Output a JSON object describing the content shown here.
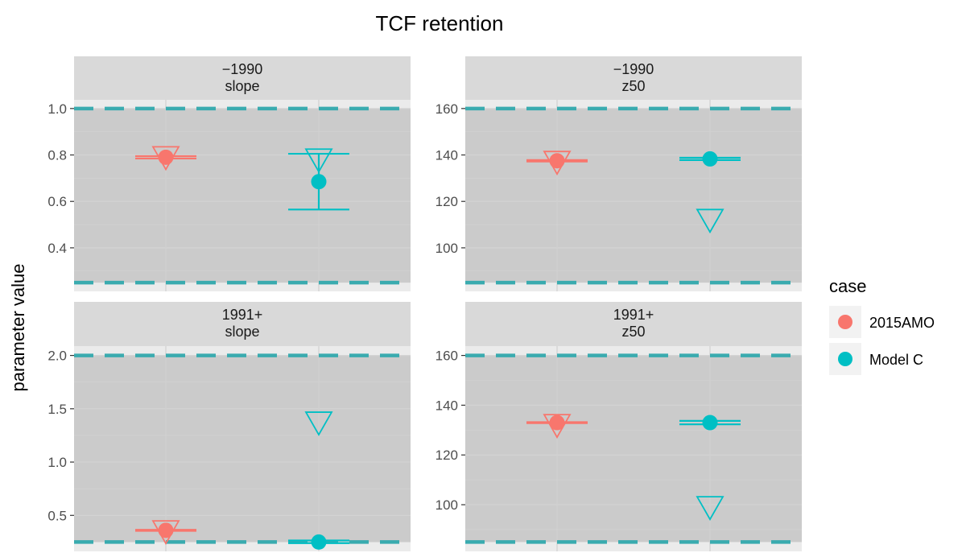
{
  "title": "TCF retention",
  "ylabel": "parameter value",
  "legend": {
    "title": "case",
    "entries": [
      {
        "label": "2015AMO",
        "color": "#F8766D"
      },
      {
        "label": "Model C",
        "color": "#00BFC4"
      }
    ]
  },
  "chart_data": {
    "type": "scatter",
    "title": "TCF retention",
    "ylabel": "parameter value",
    "legend_position": "right",
    "categories": [
      "2015AMO",
      "Model C"
    ],
    "panels": [
      {
        "strip": [
          "−1990",
          "slope"
        ],
        "ylim": [
          0.25,
          1.0
        ],
        "yticks": [
          0.4,
          0.6,
          0.8,
          1.0
        ],
        "ytick_labels": [
          "0.4",
          "0.6",
          "0.8",
          "1.0"
        ],
        "bounds": [
          0.25,
          1.0
        ],
        "points": [
          {
            "case": "2015AMO",
            "estimate": 0.79,
            "lower": 0.785,
            "upper": 0.795,
            "initial": 0.79
          },
          {
            "case": "Model C",
            "estimate": 0.685,
            "lower": 0.565,
            "upper": 0.805,
            "initial": 0.78
          }
        ]
      },
      {
        "strip": [
          "−1990",
          "z50"
        ],
        "ylim": [
          85,
          160
        ],
        "yticks": [
          100,
          120,
          140,
          160
        ],
        "ytick_labels": [
          "100",
          "120",
          "140",
          "160"
        ],
        "bounds": [
          85,
          160
        ],
        "points": [
          {
            "case": "2015AMO",
            "estimate": 137.5,
            "lower": 137.2,
            "upper": 137.8,
            "initial": 137
          },
          {
            "case": "Model C",
            "estimate": 138.3,
            "lower": 137.8,
            "upper": 138.8,
            "initial": 112
          }
        ]
      },
      {
        "strip": [
          "1991+",
          "slope"
        ],
        "ylim": [
          0.25,
          2.0
        ],
        "yticks": [
          0.5,
          1.0,
          1.5,
          2.0
        ],
        "ytick_labels": [
          "0.5",
          "1.0",
          "1.5",
          "2.0"
        ],
        "bounds": [
          0.25,
          2.0
        ],
        "points": [
          {
            "case": "2015AMO",
            "estimate": 0.36,
            "lower": 0.355,
            "upper": 0.365,
            "initial": 0.35
          },
          {
            "case": "Model C",
            "estimate": 0.25,
            "lower": 0.24,
            "upper": 0.265,
            "initial": 1.37
          }
        ]
      },
      {
        "strip": [
          "1991+",
          "z50"
        ],
        "ylim": [
          85,
          160
        ],
        "yticks": [
          100,
          120,
          140,
          160
        ],
        "ytick_labels": [
          "100",
          "120",
          "140",
          "160"
        ],
        "bounds": [
          85,
          160
        ],
        "points": [
          {
            "case": "2015AMO",
            "estimate": 133,
            "lower": 132.8,
            "upper": 133.2,
            "initial": 132
          },
          {
            "case": "Model C",
            "estimate": 133,
            "lower": 132.3,
            "upper": 133.7,
            "initial": 99
          }
        ]
      }
    ]
  }
}
